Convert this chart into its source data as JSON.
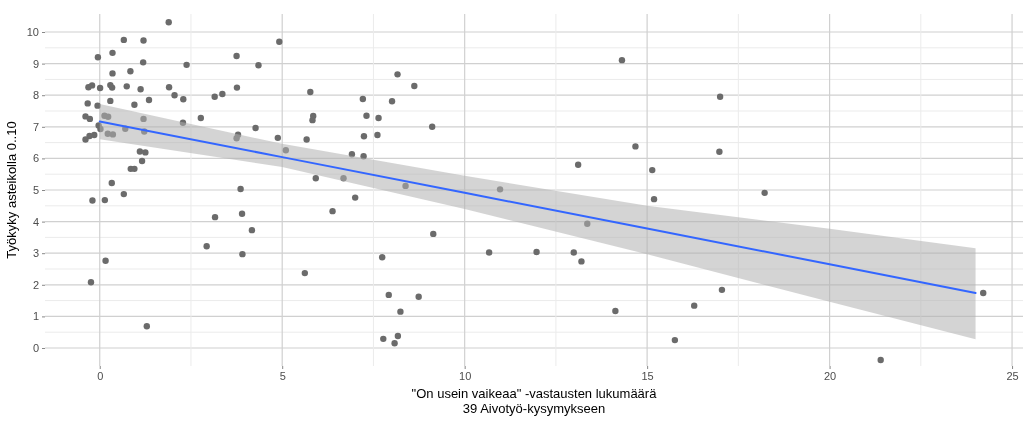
{
  "chart_data": {
    "type": "scatter",
    "xlabel": "\"On usein vaikeaa\" -vastausten lukumäärä\n39 Aivotyö-kysymykseen",
    "ylabel": "Työkyky asteikolla 0..10",
    "xlim": [
      -1.5,
      25.3
    ],
    "xticks": [
      0,
      5,
      10,
      15,
      20,
      25
    ],
    "ylim": [
      -0.57,
      10.57
    ],
    "yticks": [
      0,
      1,
      2,
      3,
      4,
      5,
      6,
      7,
      8,
      9,
      10
    ],
    "grid": true,
    "series": [
      {
        "marker": "circle",
        "color": "#6b6b6b",
        "x": [
          1.89,
          0.66,
          1.2,
          4.92,
          -0.05,
          0.35,
          1.19,
          0.84,
          0.35,
          2.38,
          3.75,
          4.35,
          -0.31,
          -0.21,
          0.01,
          0.29,
          0.34,
          0.74,
          1.12,
          1.9,
          2.05,
          2.29,
          1.35,
          3.15,
          3.36,
          3.76,
          -0.33,
          -0.06,
          0.29,
          0.95,
          -0.39,
          -0.27,
          0.13,
          0.23,
          1.2,
          2.77,
          -0.03,
          0.02,
          2.28,
          -0.28,
          -0.15,
          -0.39,
          0.22,
          0.36,
          0.7,
          1.22,
          4.27,
          3.79,
          3.75,
          4.88,
          5.1,
          1.1,
          1.25,
          1.16,
          0.85,
          0.95,
          0.33,
          0.66,
          -0.2,
          0.14,
          3.86,
          3.16,
          3.9,
          4.17,
          2.93,
          3.91,
          0.16,
          -0.24,
          1.29,
          8.16,
          8.62,
          5.77,
          7.21,
          8.01,
          5.85,
          5.83,
          7.31,
          7.64,
          9.11,
          5.67,
          7.24,
          7.61,
          6.91,
          7.23,
          5.92,
          6.68,
          8.38,
          7.0,
          6.38,
          9.14,
          7.74,
          5.62,
          7.92,
          8.74,
          8.24,
          7.77,
          8.17,
          8.08,
          14.31,
          17.0,
          14.68,
          16.98,
          13.11,
          15.14,
          10.97,
          15.19,
          13.36,
          10.67,
          11.97,
          12.99,
          13.2,
          17.05,
          16.29,
          14.13,
          15.76,
          18.22,
          24.21,
          21.4
        ],
        "values": [
          10.31,
          9.75,
          9.73,
          9.69,
          9.2,
          9.34,
          9.04,
          8.76,
          8.69,
          8.96,
          9.24,
          8.95,
          8.25,
          8.31,
          8.23,
          8.32,
          8.24,
          8.28,
          8.19,
          8.25,
          8.0,
          7.87,
          7.85,
          7.95,
          8.04,
          8.24,
          7.74,
          7.67,
          7.82,
          7.7,
          7.33,
          7.25,
          7.35,
          7.32,
          7.25,
          7.28,
          7.04,
          6.93,
          7.13,
          6.71,
          6.74,
          6.6,
          6.78,
          6.76,
          6.94,
          6.85,
          6.96,
          6.75,
          6.64,
          6.65,
          6.26,
          6.22,
          6.19,
          5.92,
          5.67,
          5.67,
          5.22,
          4.87,
          4.67,
          4.68,
          5.03,
          4.14,
          4.25,
          3.73,
          3.22,
          2.97,
          2.76,
          2.08,
          0.69,
          8.66,
          8.29,
          8.1,
          7.88,
          7.81,
          7.34,
          7.21,
          7.35,
          7.28,
          7.0,
          6.6,
          6.7,
          6.74,
          6.13,
          6.07,
          5.37,
          5.37,
          5.13,
          4.76,
          4.33,
          3.61,
          2.87,
          2.37,
          1.68,
          1.62,
          1.15,
          0.29,
          0.38,
          0.15,
          9.11,
          7.95,
          6.38,
          6.21,
          5.8,
          5.63,
          5.02,
          4.71,
          3.93,
          3.02,
          3.04,
          3.02,
          2.74,
          1.84,
          1.34,
          1.17,
          0.25,
          4.91,
          1.74,
          -0.38
        ]
      },
      {
        "type": "line",
        "color": "#3366ff",
        "x": [
          0,
          5,
          10,
          15,
          20,
          24
        ],
        "values": [
          7.17,
          6.04,
          4.91,
          3.78,
          2.65,
          1.74
        ],
        "lower": [
          6.61,
          5.73,
          4.4,
          2.97,
          1.46,
          0.28
        ],
        "upper": [
          7.72,
          6.46,
          5.45,
          4.5,
          3.77,
          3.16
        ]
      }
    ]
  }
}
